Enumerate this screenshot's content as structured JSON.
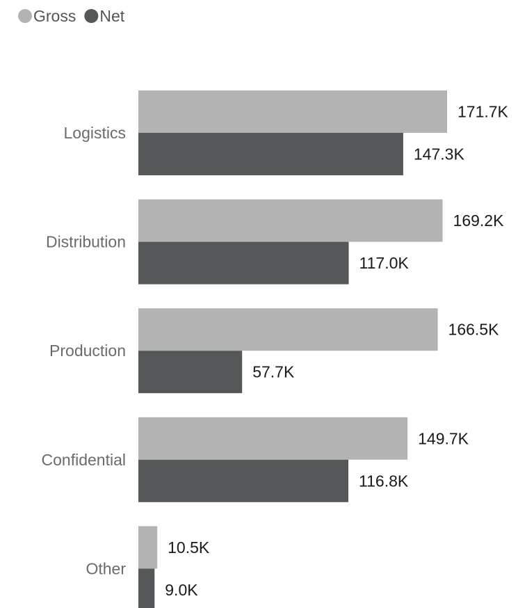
{
  "chart_data": {
    "type": "bar",
    "orientation": "horizontal",
    "categories": [
      "Logistics",
      "Distribution",
      "Production",
      "Confidential",
      "Other"
    ],
    "series": [
      {
        "name": "Gross",
        "color": "#b3b3b3",
        "values": [
          171.7,
          169.2,
          166.5,
          149.7,
          10.5
        ],
        "labels": [
          "171.7K",
          "169.2K",
          "166.5K",
          "149.7K",
          "10.5K"
        ]
      },
      {
        "name": "Net",
        "color": "#555859",
        "values": [
          147.3,
          117.0,
          57.7,
          116.8,
          9.0
        ],
        "labels": [
          "147.3K",
          "117.0K",
          "57.7K",
          "116.8K",
          "9.0K"
        ]
      }
    ],
    "unit": "K",
    "xlim": [
      0,
      175
    ],
    "legend_position": "top-left",
    "grid": false,
    "title": "",
    "xlabel": "",
    "ylabel": ""
  }
}
